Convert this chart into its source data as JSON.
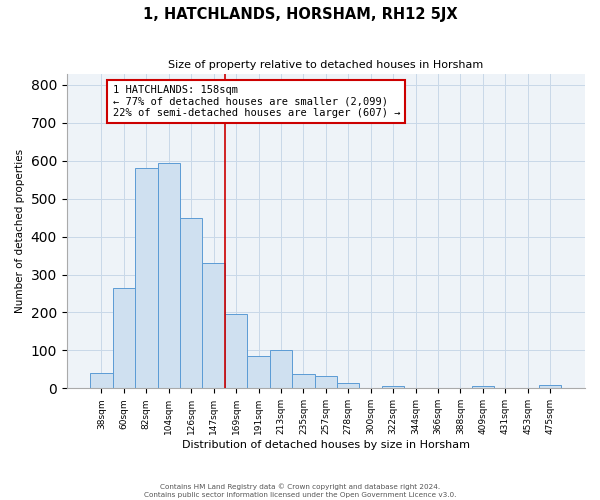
{
  "title": "1, HATCHLANDS, HORSHAM, RH12 5JX",
  "subtitle": "Size of property relative to detached houses in Horsham",
  "xlabel": "Distribution of detached houses by size in Horsham",
  "ylabel": "Number of detached properties",
  "bar_labels": [
    "38sqm",
    "60sqm",
    "82sqm",
    "104sqm",
    "126sqm",
    "147sqm",
    "169sqm",
    "191sqm",
    "213sqm",
    "235sqm",
    "257sqm",
    "278sqm",
    "300sqm",
    "322sqm",
    "344sqm",
    "366sqm",
    "388sqm",
    "409sqm",
    "431sqm",
    "453sqm",
    "475sqm"
  ],
  "bar_values": [
    40,
    265,
    580,
    595,
    450,
    330,
    195,
    85,
    100,
    37,
    32,
    13,
    0,
    5,
    0,
    0,
    0,
    7,
    0,
    0,
    8
  ],
  "bar_color": "#cfe0f0",
  "bar_edge_color": "#5b9bd5",
  "vline_x_index": 5.5,
  "vline_color": "#cc0000",
  "annotation_title": "1 HATCHLANDS: 158sqm",
  "annotation_line1": "← 77% of detached houses are smaller (2,099)",
  "annotation_line2": "22% of semi-detached houses are larger (607) →",
  "annotation_box_color": "#cc0000",
  "ylim": [
    0,
    830
  ],
  "yticks": [
    0,
    100,
    200,
    300,
    400,
    500,
    600,
    700,
    800
  ],
  "footer1": "Contains HM Land Registry data © Crown copyright and database right 2024.",
  "footer2": "Contains public sector information licensed under the Open Government Licence v3.0.",
  "fig_width": 6.0,
  "fig_height": 5.0,
  "bg_color": "#f0f4f8"
}
